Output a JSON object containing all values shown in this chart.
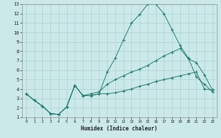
{
  "xlabel": "Humidex (Indice chaleur)",
  "bg_color": "#cce9e9",
  "grid_color": "#aad0d0",
  "line_color": "#1a7a6e",
  "xlim": [
    -0.5,
    23.5
  ],
  "ylim": [
    1,
    13
  ],
  "xticks": [
    0,
    1,
    2,
    3,
    4,
    5,
    6,
    7,
    8,
    9,
    10,
    11,
    12,
    13,
    14,
    15,
    16,
    17,
    18,
    19,
    20,
    21,
    22,
    23
  ],
  "yticks": [
    1,
    2,
    3,
    4,
    5,
    6,
    7,
    8,
    9,
    10,
    11,
    12,
    13
  ],
  "line1_x": [
    0,
    1,
    2,
    3,
    4,
    5,
    6,
    7,
    8,
    9,
    10,
    11,
    12,
    13,
    14,
    15,
    16,
    17,
    18,
    19,
    20,
    21,
    22,
    23
  ],
  "line1_y": [
    3.5,
    2.8,
    2.2,
    1.4,
    1.3,
    2.1,
    4.4,
    3.3,
    3.3,
    3.5,
    5.8,
    7.3,
    9.2,
    11.0,
    11.9,
    13.0,
    13.0,
    12.0,
    10.3,
    8.6,
    7.3,
    5.3,
    4.5,
    3.7
  ],
  "line2_x": [
    0,
    1,
    2,
    3,
    4,
    5,
    6,
    7,
    8,
    9,
    10,
    11,
    12,
    13,
    14,
    15,
    16,
    17,
    18,
    19,
    20,
    21,
    22,
    23
  ],
  "line2_y": [
    3.5,
    2.8,
    2.2,
    1.4,
    1.3,
    2.1,
    4.4,
    3.3,
    3.5,
    3.7,
    4.5,
    5.0,
    5.4,
    5.8,
    6.1,
    6.5,
    7.0,
    7.5,
    7.9,
    8.3,
    7.2,
    6.8,
    5.5,
    3.9
  ],
  "line3_x": [
    0,
    1,
    2,
    3,
    4,
    5,
    6,
    7,
    8,
    9,
    10,
    11,
    12,
    13,
    14,
    15,
    16,
    17,
    18,
    19,
    20,
    21,
    22,
    23
  ],
  "line3_y": [
    3.5,
    2.8,
    2.2,
    1.4,
    1.3,
    2.1,
    4.4,
    3.3,
    3.3,
    3.5,
    3.5,
    3.6,
    3.8,
    4.0,
    4.3,
    4.5,
    4.8,
    5.0,
    5.2,
    5.4,
    5.6,
    5.8,
    4.0,
    3.9
  ]
}
